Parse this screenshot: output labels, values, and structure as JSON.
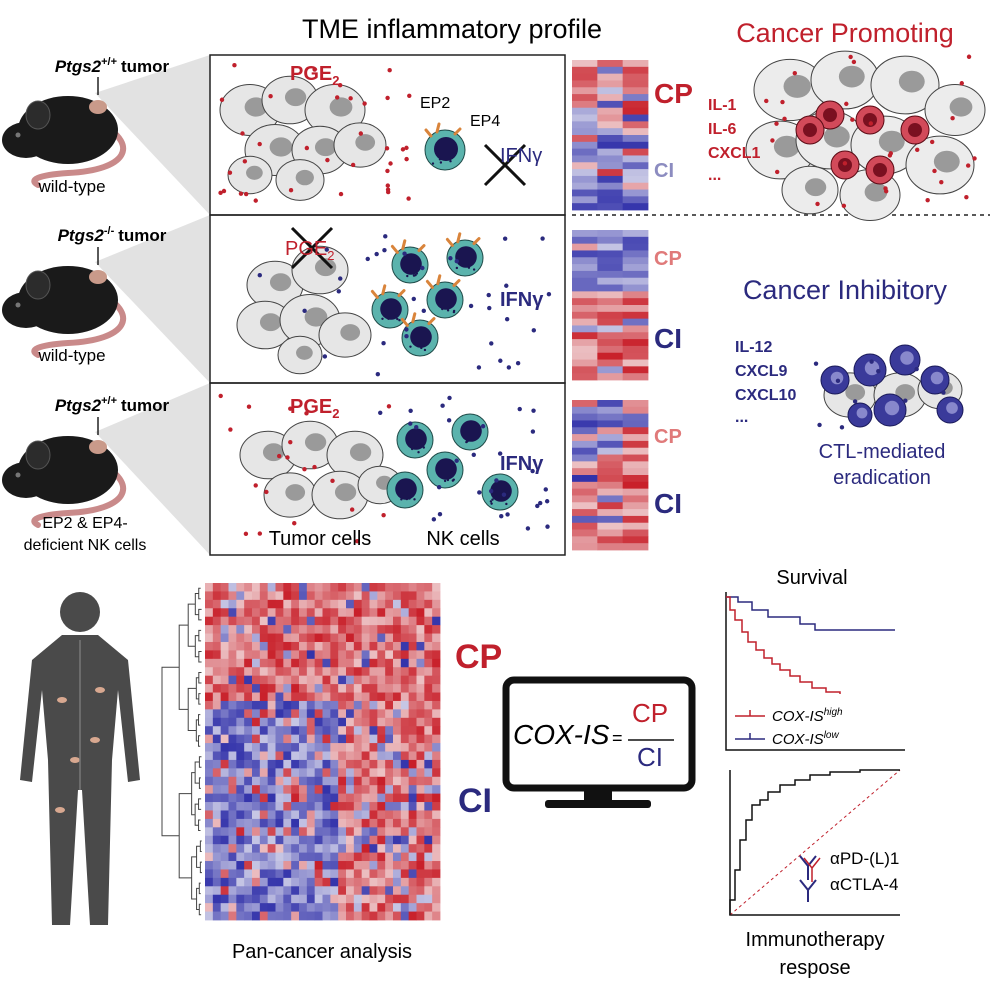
{
  "header": {
    "title": "TME inflammatory profile"
  },
  "rows": [
    {
      "gene": "Ptgs2",
      "genotype": "+/+",
      "suffix": "tumor",
      "host": [
        "wild-type"
      ],
      "signal": "PGE",
      "signal_sub": "2",
      "cytokine": "IFNγ",
      "heatmap": {
        "top": "CP",
        "bottom": "CI"
      }
    },
    {
      "gene": "Ptgs2",
      "genotype": "-/-",
      "suffix": "tumor",
      "host": [
        "wild-type"
      ],
      "signal": "PGE",
      "signal_sub": "2",
      "cytokine": "IFNγ",
      "heatmap": {
        "top": "CP",
        "bottom": "CI"
      }
    },
    {
      "gene": "Ptgs2",
      "genotype": "+/+",
      "suffix": "tumor",
      "host": [
        "EP2 & EP4-",
        "deficient NK cells"
      ],
      "signal": "PGE",
      "signal_sub": "2",
      "cytokine": "IFNγ",
      "heatmap": {
        "top": "CP",
        "bottom": "CI"
      }
    }
  ],
  "receptors": [
    "EP2",
    "EP4"
  ],
  "cell_labels": [
    "Tumor cells",
    "NK cells"
  ],
  "promoting": {
    "title": "Cancer Promoting",
    "markers": [
      "IL-1",
      "IL-6",
      "CXCL1",
      "..."
    ]
  },
  "inhibitory": {
    "title": "Cancer Inhibitory",
    "markers": [
      "IL-12",
      "CXCL9",
      "CXCL10",
      "..."
    ],
    "caption": [
      "CTL-mediated",
      "eradication"
    ]
  },
  "pan_cancer": {
    "top": "CP",
    "bottom": "CI",
    "caption": "Pan-cancer analysis"
  },
  "score": {
    "name": "COX-IS",
    "equals": "=",
    "numerator": "CP",
    "denominator": "CI"
  },
  "survival": {
    "title": "Survival",
    "legend": [
      {
        "name": "COX-IS",
        "sup": "high"
      },
      {
        "name": "COX-IS",
        "sup": "low"
      }
    ]
  },
  "immunotherapy": {
    "legend": [
      "αPD-(L)1",
      "αCTLA-4"
    ],
    "caption": [
      "Immunotherapy",
      "respose"
    ]
  }
}
